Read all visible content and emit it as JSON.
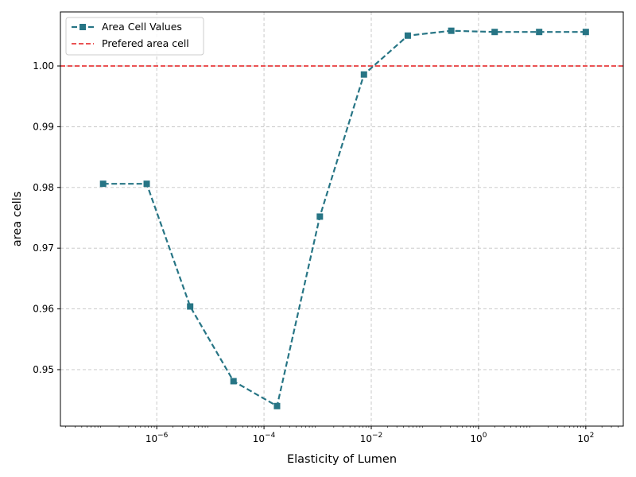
{
  "chart_data": {
    "type": "line",
    "title": "",
    "xlabel": "Elasticity of Lumen",
    "ylabel": "area cells",
    "xscale": "log",
    "xlim": [
      1.6e-08,
      500
    ],
    "ylim": [
      0.9407,
      1.0089
    ],
    "grid": true,
    "legend_position": "top-left",
    "x_ticks": [
      {
        "value": 1e-06,
        "base": "10",
        "exp": "−6"
      },
      {
        "value": 0.0001,
        "base": "10",
        "exp": "−4"
      },
      {
        "value": 0.01,
        "base": "10",
        "exp": "−2"
      },
      {
        "value": 1,
        "base": "10",
        "exp": "0"
      },
      {
        "value": 100,
        "base": "10",
        "exp": "2"
      }
    ],
    "y_ticks": [
      {
        "value": 0.95,
        "label": "0.95"
      },
      {
        "value": 0.96,
        "label": "0.96"
      },
      {
        "value": 0.97,
        "label": "0.97"
      },
      {
        "value": 0.98,
        "label": "0.98"
      },
      {
        "value": 0.99,
        "label": "0.99"
      },
      {
        "value": 1.0,
        "label": "1.00"
      }
    ],
    "series": [
      {
        "name": "Area Cell Values",
        "color": "#277585",
        "line_style": "dashed",
        "marker": "square",
        "x": [
          1e-07,
          6.5e-07,
          4.2e-06,
          2.7e-05,
          0.000175,
          0.0011,
          0.0073,
          0.048,
          0.31,
          2.0,
          13.5,
          100
        ],
        "y": [
          0.9806,
          0.9806,
          0.9604,
          0.9481,
          0.944,
          0.9752,
          0.9986,
          1.005,
          1.0058,
          1.0056,
          1.0056,
          1.0056
        ]
      }
    ],
    "reference_lines": [
      {
        "name": "Prefered area cell",
        "orientation": "horizontal",
        "y": 1.0,
        "color": "#e31a1c",
        "line_style": "dashed"
      }
    ]
  }
}
